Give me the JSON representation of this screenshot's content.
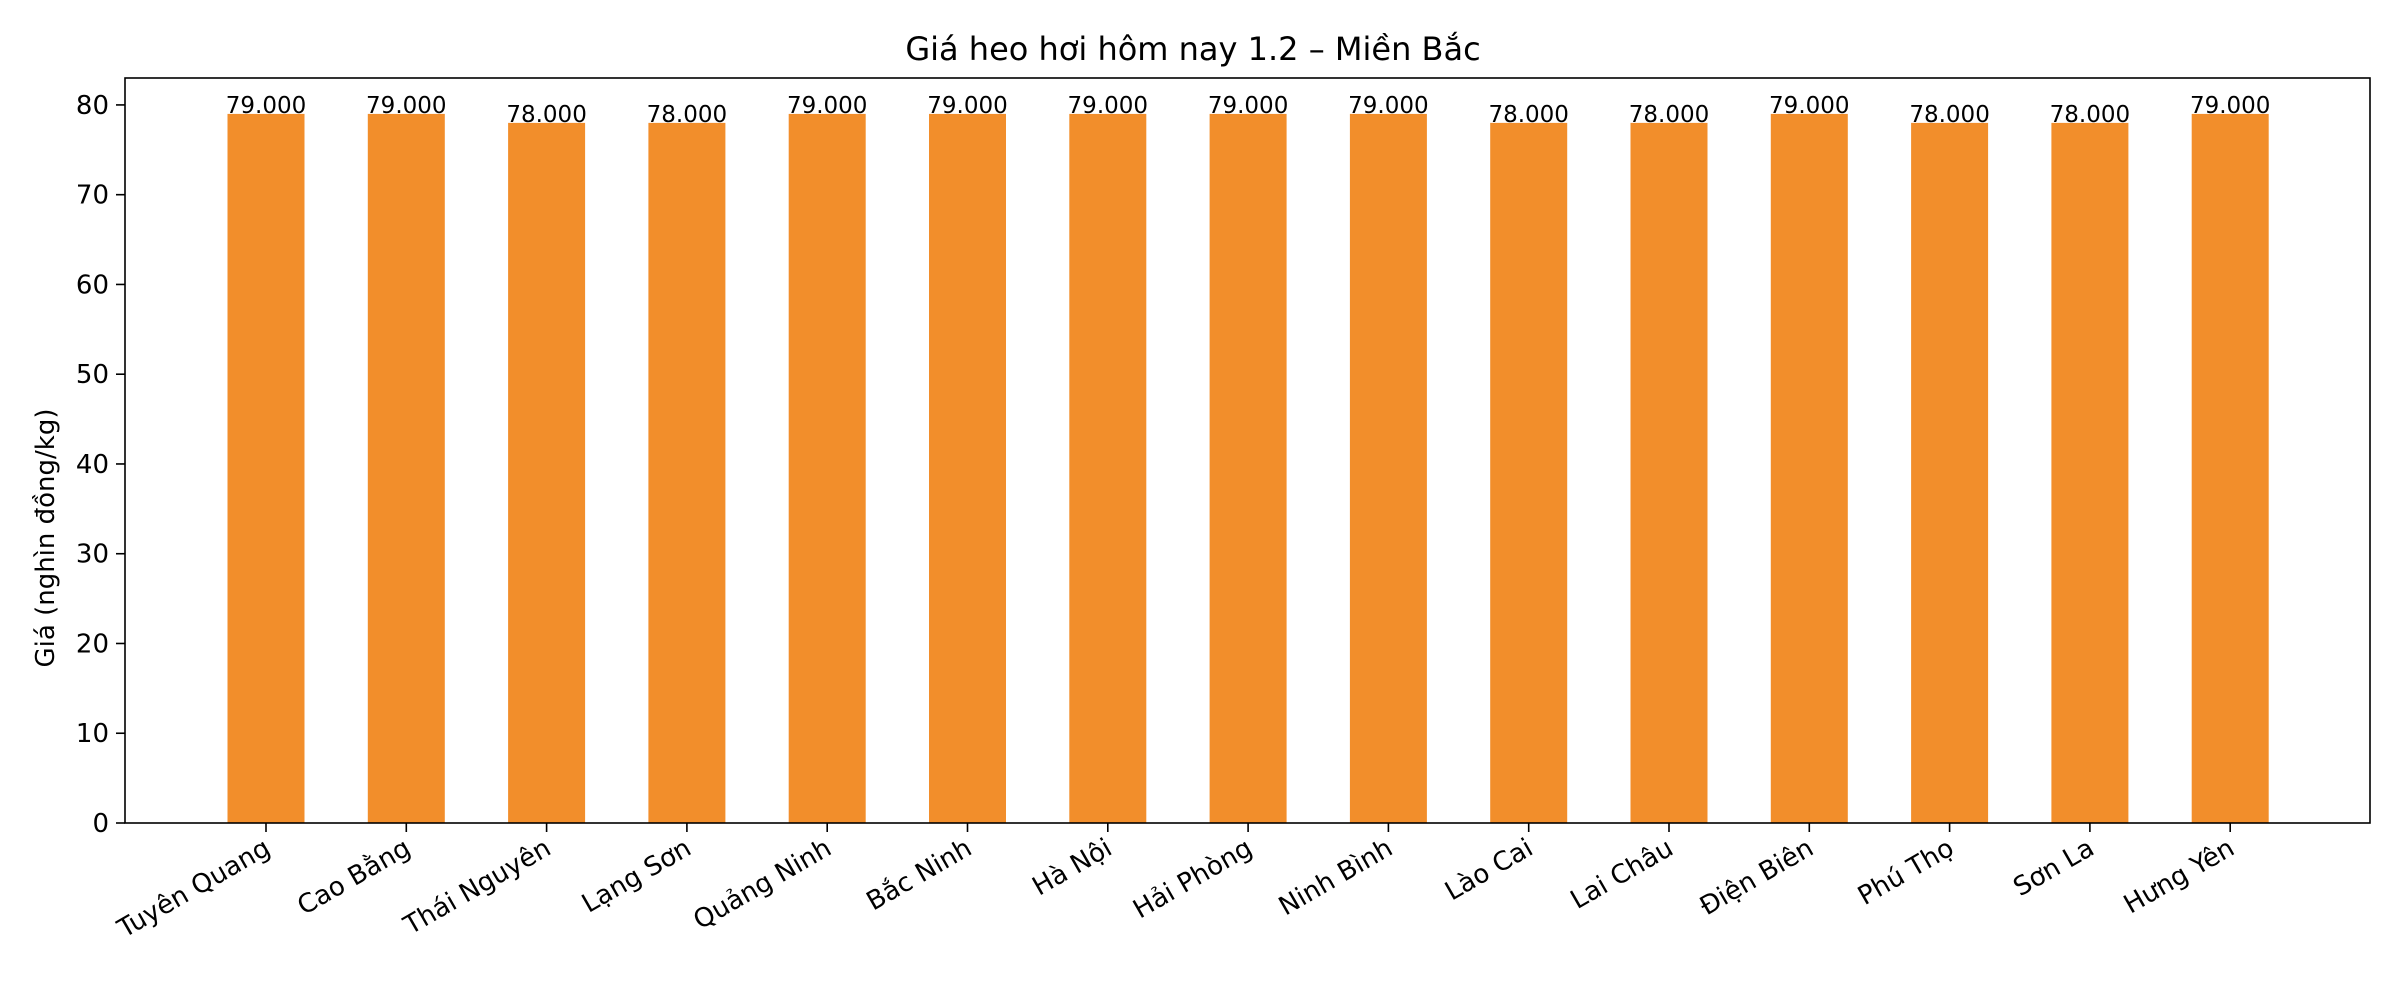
{
  "chart_data": {
    "type": "bar",
    "title": "Giá heo hơi hôm nay 1.2 – Miền Bắc",
    "xlabel": "",
    "ylabel": "Giá (nghìn đồng/kg)",
    "ylim": [
      0,
      83
    ],
    "yticks": [
      0,
      10,
      20,
      30,
      40,
      50,
      60,
      70,
      80
    ],
    "grid": false,
    "categories": [
      "Tuyên Quang",
      "Cao Bằng",
      "Thái Nguyên",
      "Lạng Sơn",
      "Quảng Ninh",
      "Bắc Ninh",
      "Hà Nội",
      "Hải Phòng",
      "Ninh Bình",
      "Lào Cai",
      "Lai Châu",
      "Điện Biên",
      "Phú Thọ",
      "Sơn La",
      "Hưng Yên"
    ],
    "values": [
      79,
      79,
      78,
      78,
      79,
      79,
      79,
      79,
      79,
      78,
      78,
      79,
      78,
      78,
      79
    ],
    "data_labels": [
      "79.000",
      "79.000",
      "78.000",
      "78.000",
      "79.000",
      "79.000",
      "79.000",
      "79.000",
      "79.000",
      "78.000",
      "78.000",
      "79.000",
      "78.000",
      "78.000",
      "79.000"
    ],
    "bar_color": "#F28E2B"
  }
}
